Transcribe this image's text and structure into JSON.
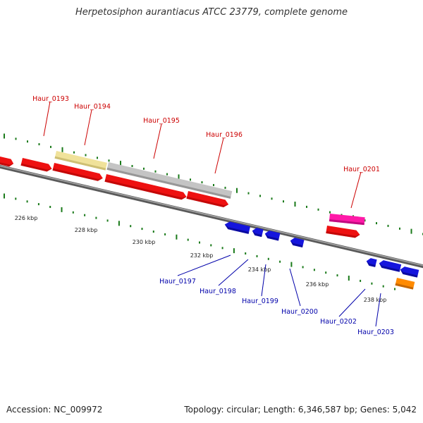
{
  "title": "Herpetosiphon aurantiacus ATCC 23779, complete genome",
  "accession": "Accession: NC_009972",
  "summary": "Topology: circular; Length: 6,346,587 bp; Genes: 5,042",
  "colors": {
    "forward_label": "#cc0000",
    "reverse_label": "#0000aa",
    "backbone": "#7a7a7a",
    "tick": "#1a7a1a",
    "gene_red": "#ee1111",
    "gene_blue": "#1515dd",
    "gene_yellow": "#f0e29a",
    "gene_gray": "#c4c4c4",
    "gene_pink": "#ff1aa8",
    "gene_orange": "#ff8a00"
  },
  "scale_labels": [
    "226 kbp",
    "228 kbp",
    "230 kbp",
    "232 kbp",
    "234 kbp",
    "236 kbp",
    "238 kbp"
  ],
  "forward_labels": [
    "Haur_0193",
    "Haur_0194",
    "Haur_0195",
    "Haur_0196",
    "Haur_0201"
  ],
  "reverse_labels": [
    "Haur_0197",
    "Haur_0198",
    "Haur_0199",
    "Haur_0200",
    "Haur_0202",
    "Haur_0203"
  ]
}
